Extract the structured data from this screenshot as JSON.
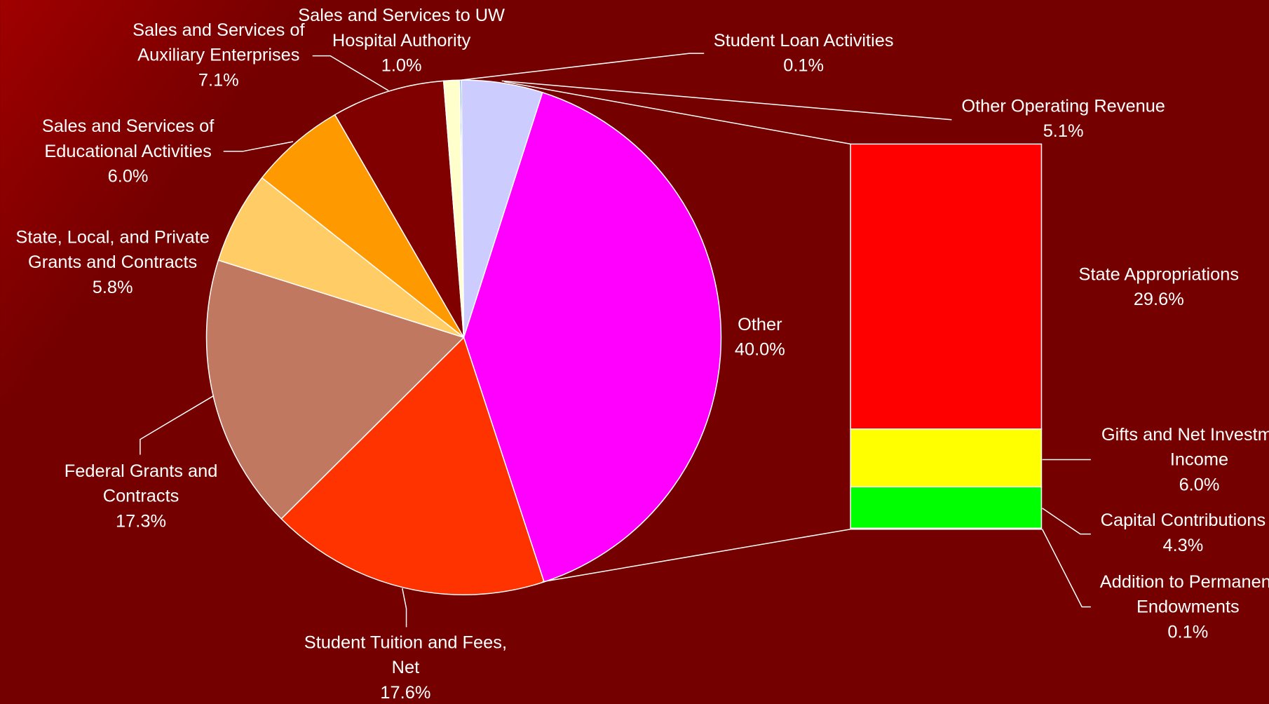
{
  "chart_data": {
    "type": "pie",
    "categories": [
      [
        "Student Loan Activities"
      ],
      [
        "Other Operating Revenue"
      ],
      [
        "Other"
      ],
      [
        "Student Tuition and Fees,",
        "Net"
      ],
      [
        "Federal Grants and",
        "Contracts"
      ],
      [
        "State, Local, and Private",
        "Grants and Contracts"
      ],
      [
        "Sales and Services of",
        "Educational Activities"
      ],
      [
        "Sales and Services of",
        "Auxiliary Enterprises"
      ],
      [
        "Sales and Services to UW",
        "Hospital Authority"
      ]
    ],
    "values": [
      0.1,
      5.1,
      40.0,
      17.6,
      17.3,
      5.8,
      6.0,
      7.1,
      1.0
    ],
    "value_labels": [
      "0.1%",
      "5.1%",
      "40.0%",
      "17.6%",
      "17.3%",
      "5.8%",
      "6.0%",
      "7.1%",
      "1.0%"
    ],
    "colors": [
      "#0066cc",
      "#ccccff",
      "#ff00ff",
      "#ff3300",
      "#c07860",
      "#ffcc66",
      "#ff9900",
      "#800000",
      "#ffffcc"
    ],
    "breakout": {
      "type": "bar",
      "categories": [
        [
          "State Appropriations"
        ],
        [
          "Gifts and Net Investment",
          "Income"
        ],
        [
          "Capital Contributions"
        ],
        [
          "Addition to Permanent",
          "Endowments"
        ]
      ],
      "values": [
        29.6,
        6.0,
        4.3,
        0.1
      ],
      "value_labels": [
        "29.6%",
        "6.0%",
        "4.3%",
        "0.1%"
      ],
      "colors": [
        "#ff0000",
        "#ffff00",
        "#00ff00",
        "#ffffff"
      ]
    }
  }
}
